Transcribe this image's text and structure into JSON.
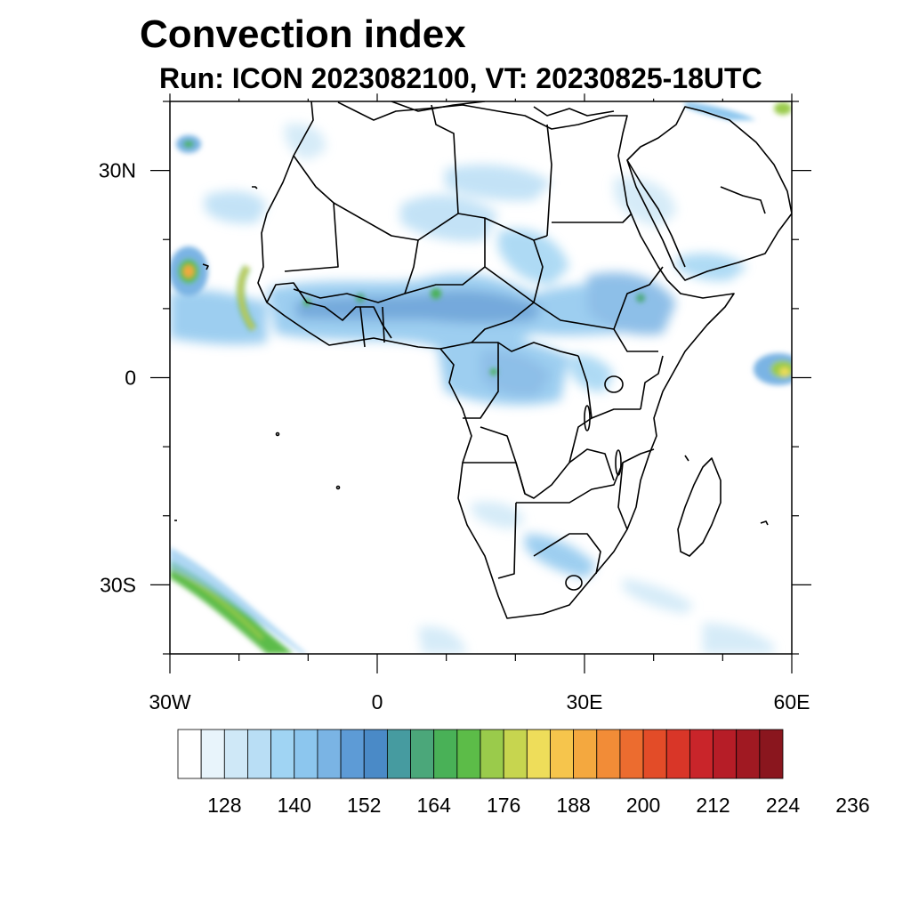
{
  "title": "Convection index",
  "subtitle": "Run: ICON 2023082100,  VT: 20230825-18UTC",
  "map": {
    "lon_range": [
      -30,
      60
    ],
    "lat_range": [
      -40,
      40
    ],
    "lon_tick_labels": [
      {
        "lon": -30,
        "text": "30W"
      },
      {
        "lon": 0,
        "text": "0"
      },
      {
        "lon": 30,
        "text": "30E"
      },
      {
        "lon": 60,
        "text": "60E"
      }
    ],
    "lat_tick_labels": [
      {
        "lat": 30,
        "text": "30N"
      },
      {
        "lat": 0,
        "text": "0"
      },
      {
        "lat": -30,
        "text": "30S"
      }
    ],
    "coastline_color": "#000000",
    "background": "#ffffff"
  },
  "colorbar": {
    "labels": [
      "128",
      "140",
      "152",
      "164",
      "176",
      "188",
      "200",
      "212",
      "224",
      "236"
    ],
    "colors": [
      "#ffffff",
      "#e8f4fb",
      "#cfe8f7",
      "#b9def5",
      "#a0d4f3",
      "#8cc6ee",
      "#7ab4e4",
      "#5d9bd6",
      "#4a8ac7",
      "#469ba0",
      "#4ba77a",
      "#49b157",
      "#5cbc48",
      "#9acb4b",
      "#c7d54f",
      "#eedd5a",
      "#f6c54c",
      "#f4a83f",
      "#f28c37",
      "#ec6c2f",
      "#e34c28",
      "#d93628",
      "#c9252a",
      "#b61d27",
      "#a01922",
      "#8a161e"
    ]
  }
}
